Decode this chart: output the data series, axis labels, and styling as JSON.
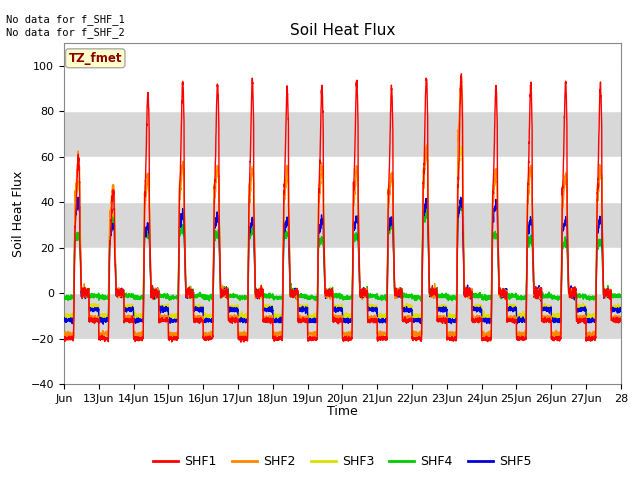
{
  "title": "Soil Heat Flux",
  "ylabel": "Soil Heat Flux",
  "xlabel": "Time",
  "ylim": [
    -40,
    110
  ],
  "yticks": [
    -40,
    -20,
    0,
    20,
    40,
    60,
    80,
    100
  ],
  "fig_bg": "#ffffff",
  "plot_bg": "#f0f0f0",
  "shaded_top": "#d8d8d8",
  "annotation_text": "No data for f_SHF_1\nNo data for f_SHF_2",
  "legend_box_text": "TZ_fmet",
  "legend_box_facecolor": "#ffffcc",
  "legend_box_edgecolor": "#aaaaaa",
  "series_colors": {
    "SHF1": "#ff0000",
    "SHF2": "#ff8800",
    "SHF3": "#dddd00",
    "SHF4": "#00cc00",
    "SHF5": "#0000dd"
  },
  "num_days": 16,
  "x_tick_labels": [
    "Jun",
    "13Jun",
    "14Jun",
    "15Jun",
    "16Jun",
    "17Jun",
    "18Jun",
    "19Jun",
    "20Jun",
    "21Jun",
    "22Jun",
    "23Jun",
    "24Jun",
    "25Jun",
    "26Jun",
    "27Jun",
    "28"
  ]
}
